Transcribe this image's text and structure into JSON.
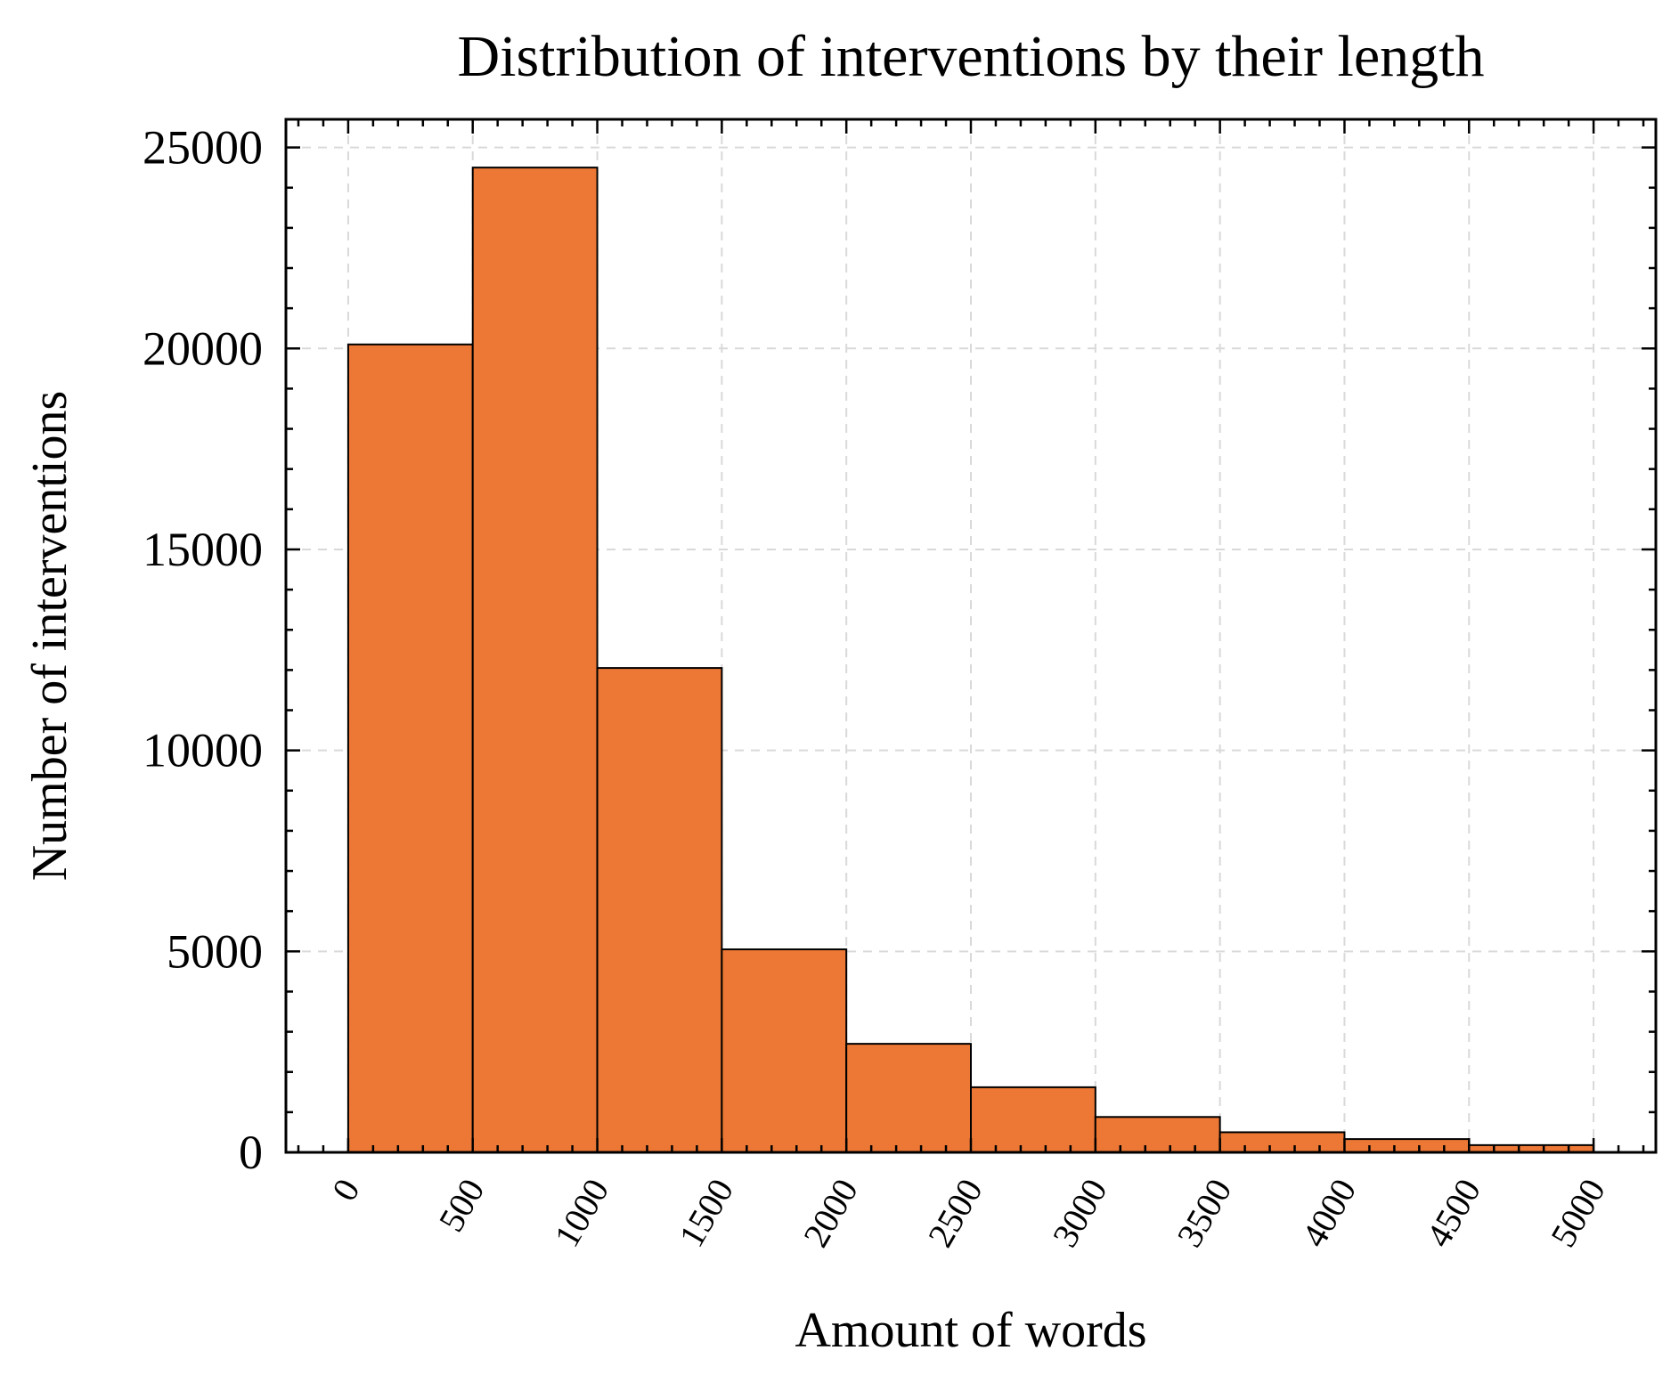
{
  "chart_data": {
    "type": "bar",
    "title": "Distribution of interventions by their length",
    "xlabel": "Amount of words",
    "ylabel": "Number of interventions",
    "bins": [
      {
        "start": 0,
        "end": 500,
        "value": 20100
      },
      {
        "start": 500,
        "end": 1000,
        "value": 24500
      },
      {
        "start": 1000,
        "end": 1500,
        "value": 12050
      },
      {
        "start": 1500,
        "end": 2000,
        "value": 5050
      },
      {
        "start": 2000,
        "end": 2500,
        "value": 2700
      },
      {
        "start": 2500,
        "end": 3000,
        "value": 1620
      },
      {
        "start": 3000,
        "end": 3500,
        "value": 880
      },
      {
        "start": 3500,
        "end": 4000,
        "value": 500
      },
      {
        "start": 4000,
        "end": 4500,
        "value": 330
      },
      {
        "start": 4500,
        "end": 5000,
        "value": 180
      }
    ],
    "xlim": [
      -250,
      5250
    ],
    "ylim": [
      0,
      25700
    ],
    "xticks": [
      "0",
      "500",
      "1000",
      "1500",
      "2000",
      "2500",
      "3000",
      "3500",
      "4000",
      "4500",
      "5000"
    ],
    "yticks": [
      "0",
      "5000",
      "10000",
      "15000",
      "20000",
      "25000"
    ],
    "x_minor_step": 100,
    "y_minor_step": 1000,
    "grid": true,
    "bar_color": "#ed7836",
    "edge_color": "#000000",
    "grid_color": "#d9d9d9"
  }
}
